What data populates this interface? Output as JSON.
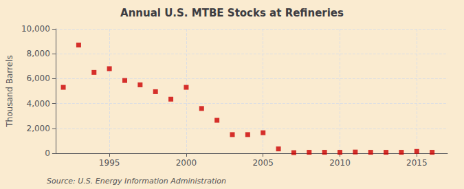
{
  "chart_data": {
    "type": "scatter",
    "title": "Annual U.S. MTBE Stocks at Refineries",
    "ylabel": "Thousand Barrels",
    "annotations": [
      "Source: U.S. Energy Information Administration"
    ],
    "x": [
      1992,
      1993,
      1994,
      1995,
      1996,
      1997,
      1998,
      1999,
      2000,
      2001,
      2002,
      2003,
      2004,
      2005,
      2006,
      2007,
      2008,
      2009,
      2010,
      2011,
      2012,
      2013,
      2014,
      2015,
      2016
    ],
    "values": [
      5300,
      8700,
      6500,
      6800,
      5850,
      5500,
      4950,
      4350,
      5300,
      3600,
      2650,
      1500,
      1500,
      1650,
      350,
      50,
      80,
      80,
      80,
      100,
      80,
      80,
      80,
      150,
      80
    ],
    "color": "#cc0000",
    "marker": "square",
    "xlim": [
      1991.5,
      2017
    ],
    "xticks": [
      1995,
      2000,
      2005,
      2010,
      2015
    ],
    "ylim": [
      0,
      10000
    ],
    "yticks": [
      0,
      {
        "value": 2000,
        "label": "2,000"
      },
      {
        "value": 4000,
        "label": "4,000"
      },
      {
        "value": 6000,
        "label": "6,000"
      },
      {
        "value": 8000,
        "label": "8,000"
      },
      {
        "value": 10000,
        "label": "10,000"
      }
    ],
    "grid": true
  }
}
